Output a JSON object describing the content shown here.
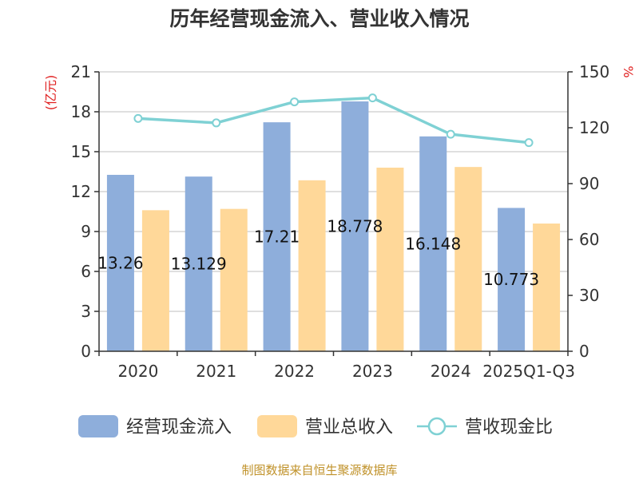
{
  "chart_data": {
    "type": "bar+line",
    "title": "历年经营现金流入、营业收入情况",
    "categories": [
      "2020",
      "2021",
      "2022",
      "2023",
      "2024",
      "2025Q1-Q3"
    ],
    "y_left": {
      "unit": "(亿元)",
      "min": 0,
      "max": 21,
      "ticks": [
        0,
        3,
        6,
        9,
        12,
        15,
        18,
        21
      ]
    },
    "y_right": {
      "unit": "%",
      "min": 0,
      "max": 150,
      "ticks": [
        0,
        30,
        60,
        90,
        120,
        150
      ]
    },
    "series": [
      {
        "name": "经营现金流入",
        "type": "bar",
        "axis": "left",
        "color": "#8eaedb",
        "values": [
          13.26,
          13.129,
          17.21,
          18.778,
          16.148,
          10.773
        ],
        "labels": [
          "13.26",
          "13.129",
          "17.21",
          "18.778",
          "16.148",
          "10.773"
        ]
      },
      {
        "name": "营业总收入",
        "type": "bar",
        "axis": "left",
        "color": "#ffd899",
        "values": [
          10.6,
          10.7,
          12.85,
          13.8,
          13.85,
          9.6
        ]
      },
      {
        "name": "营收现金比",
        "type": "line",
        "axis": "right",
        "color": "#7fd1d4",
        "values": [
          125,
          122.6,
          133.9,
          136,
          116.5,
          112
        ]
      }
    ],
    "grid": true,
    "legend": "bottom"
  },
  "source_text": "制图数据来自恒生聚源数据库"
}
